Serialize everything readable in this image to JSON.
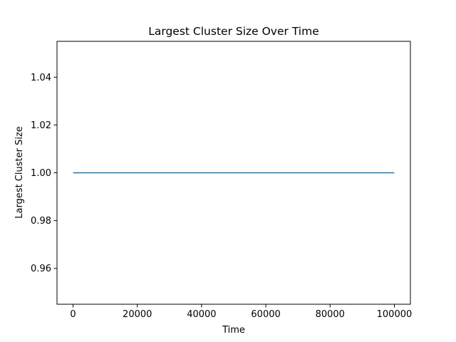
{
  "chart_data": {
    "type": "line",
    "title": "Largest Cluster Size Over Time",
    "xlabel": "Time",
    "ylabel": "Largest Cluster Size",
    "xlim": [
      -5000,
      105000
    ],
    "ylim": [
      0.945,
      1.055
    ],
    "x_ticks": [
      0,
      20000,
      40000,
      60000,
      80000,
      100000
    ],
    "x_tick_labels": [
      "0",
      "20000",
      "40000",
      "60000",
      "80000",
      "100000"
    ],
    "y_ticks": [
      0.96,
      0.98,
      1.0,
      1.02,
      1.04
    ],
    "y_tick_labels": [
      "0.96",
      "0.98",
      "1.00",
      "1.02",
      "1.04"
    ],
    "grid": false,
    "legend": "none",
    "series": [
      {
        "color": "#1f77b4",
        "x": [
          0,
          100000
        ],
        "y": [
          1.0,
          1.0
        ]
      }
    ]
  }
}
